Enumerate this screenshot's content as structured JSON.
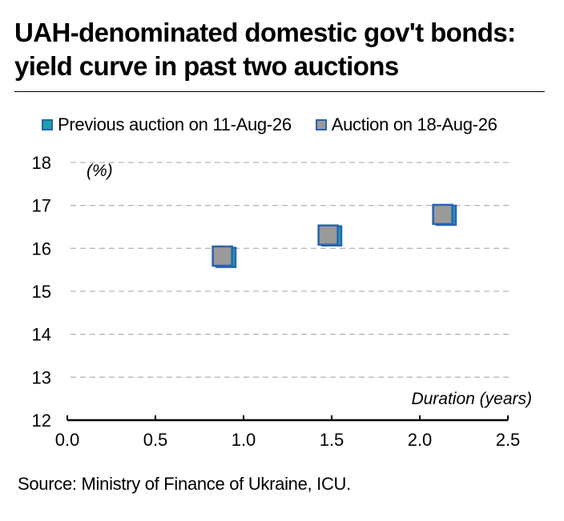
{
  "title_line1": "UAH-denominated domestic gov't bonds:",
  "title_line2": "yield curve in past two auctions",
  "source": "Source: Ministry of Finance of Ukraine, ICU.",
  "colors": {
    "previous_fill": "#1aa3a8",
    "previous_border": "#2a62b0",
    "current_fill": "#9a9a9a",
    "current_border": "#2a62b0",
    "grid": "#b8b8b8"
  },
  "chart_data": {
    "type": "scatter",
    "xlabel": "Duration (years)",
    "ylabel": "(%)",
    "xlim": [
      0,
      2.5
    ],
    "ylim": [
      12,
      18
    ],
    "x_ticks": [
      "0.0",
      "0.5",
      "1.0",
      "1.5",
      "2.0",
      "2.5"
    ],
    "y_ticks": [
      "12",
      "13",
      "14",
      "15",
      "16",
      "17",
      "18"
    ],
    "grid": "horizontal dashed",
    "legend_position": "top",
    "series": [
      {
        "name": "Previous auction on 11-Aug-26",
        "points": [
          {
            "x": 0.9,
            "y": 15.79
          },
          {
            "x": 1.5,
            "y": 16.29
          },
          {
            "x": 2.15,
            "y": 16.77
          }
        ]
      },
      {
        "name": "Auction on 18-Aug-26",
        "points": [
          {
            "x": 0.88,
            "y": 15.82
          },
          {
            "x": 1.48,
            "y": 16.31
          },
          {
            "x": 2.13,
            "y": 16.79
          }
        ]
      }
    ]
  }
}
